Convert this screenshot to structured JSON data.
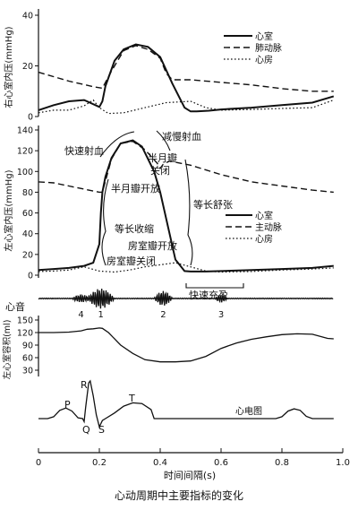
{
  "caption": "心动周期中主要指标的变化",
  "chart_data": [
    {
      "id": "right-ventricle-pressure",
      "type": "line",
      "ylabel": "右心室内压(mmHg)",
      "ylim": [
        0,
        40
      ],
      "yticks": [
        0,
        20,
        40
      ],
      "legend_placement": "top-right",
      "series": [
        {
          "name": "心室",
          "style": "solid",
          "x": [
            0,
            0.05,
            0.1,
            0.15,
            0.2,
            0.21,
            0.22,
            0.25,
            0.28,
            0.32,
            0.36,
            0.4,
            0.44,
            0.48,
            0.5,
            0.52,
            0.56,
            0.6,
            0.7,
            0.8,
            0.9,
            0.97
          ],
          "y": [
            2.5,
            4.5,
            6,
            6.5,
            3.8,
            6,
            12,
            22,
            26.5,
            28.5,
            27.5,
            23.5,
            13,
            3.5,
            2,
            2,
            2.3,
            2.8,
            3.5,
            4.5,
            5.5,
            8
          ]
        },
        {
          "name": "肺动脉",
          "style": "dashed",
          "x": [
            0,
            0.1,
            0.18,
            0.21,
            0.24,
            0.28,
            0.32,
            0.36,
            0.4,
            0.42,
            0.44,
            0.5,
            0.6,
            0.7,
            0.8,
            0.9,
            0.97
          ],
          "y": [
            17.5,
            14,
            11.8,
            11.2,
            18,
            26,
            28,
            26.5,
            23,
            17,
            14.5,
            14.5,
            13.5,
            12.5,
            11,
            10,
            10
          ]
        },
        {
          "name": "心房",
          "style": "dotted",
          "x": [
            0,
            0.05,
            0.1,
            0.15,
            0.18,
            0.2,
            0.23,
            0.28,
            0.35,
            0.42,
            0.5,
            0.55,
            0.6,
            0.7,
            0.8,
            0.9,
            0.97
          ],
          "y": [
            1.5,
            2.5,
            2.5,
            4.2,
            6.5,
            3.5,
            1.2,
            1.5,
            3.5,
            5.5,
            6,
            3.5,
            2.5,
            2.8,
            3.2,
            3.5,
            6.5
          ]
        }
      ]
    },
    {
      "id": "left-ventricle-pressure",
      "type": "line",
      "ylabel": "左心室内压(mmHg)",
      "ylim": [
        0,
        140
      ],
      "yticks": [
        0,
        20,
        40,
        60,
        80,
        100,
        120,
        140
      ],
      "legend_placement": "right",
      "series": [
        {
          "name": "心室",
          "style": "solid",
          "x": [
            0,
            0.05,
            0.1,
            0.15,
            0.18,
            0.2,
            0.205,
            0.21,
            0.22,
            0.24,
            0.27,
            0.31,
            0.34,
            0.38,
            0.4,
            0.45,
            0.48,
            0.5,
            0.55,
            0.6,
            0.7,
            0.8,
            0.9,
            0.97
          ],
          "y": [
            5,
            6,
            7,
            9,
            12,
            30,
            60,
            80,
            95,
            113,
            127,
            130,
            124,
            100,
            80,
            15,
            4,
            3.5,
            3.5,
            4,
            5,
            6,
            7,
            9
          ]
        },
        {
          "name": "主动脉",
          "style": "dashed",
          "x": [
            0,
            0.05,
            0.1,
            0.15,
            0.2,
            0.21,
            0.24,
            0.27,
            0.31,
            0.35,
            0.39,
            0.4,
            0.41,
            0.43,
            0.5,
            0.6,
            0.7,
            0.8,
            0.9,
            0.97
          ],
          "y": [
            90,
            89,
            86,
            83,
            80,
            80,
            112,
            127,
            129,
            121,
            108,
            103,
            107,
            110,
            106,
            97,
            90,
            86,
            82,
            80
          ]
        },
        {
          "name": "心房",
          "style": "dotted",
          "x": [
            0,
            0.05,
            0.1,
            0.15,
            0.2,
            0.25,
            0.3,
            0.35,
            0.4,
            0.45,
            0.5,
            0.55,
            0.6,
            0.7,
            0.8,
            0.9,
            0.97
          ],
          "y": [
            3.5,
            4,
            5,
            8,
            4,
            3,
            5,
            8,
            10,
            12,
            8,
            4,
            3,
            3.5,
            5,
            6,
            7
          ]
        }
      ],
      "annotations": [
        "快速射血",
        "减慢射血",
        "半月瓣关闭",
        "半月瓣开放",
        "等长舒张",
        "等长收缩",
        "房室瓣开放",
        "房室瓣关闭",
        "快速充盈"
      ]
    },
    {
      "id": "heart-sound",
      "type": "line",
      "label": "心音",
      "markers": [
        {
          "label": "4",
          "x": 0.14
        },
        {
          "label": "1",
          "x": 0.205
        },
        {
          "label": "2",
          "x": 0.41
        },
        {
          "label": "3",
          "x": 0.6
        }
      ]
    },
    {
      "id": "left-ventricle-volume",
      "type": "line",
      "ylabel": "左心室容积(ml)",
      "ylim": [
        30,
        150
      ],
      "yticks": [
        30,
        60,
        90,
        120,
        150
      ],
      "series": [
        {
          "x": [
            0,
            0.05,
            0.1,
            0.14,
            0.16,
            0.18,
            0.2,
            0.21,
            0.23,
            0.27,
            0.31,
            0.35,
            0.4,
            0.45,
            0.5,
            0.55,
            0.6,
            0.65,
            0.7,
            0.75,
            0.8,
            0.85,
            0.9,
            0.95,
            0.97
          ],
          "y": [
            120,
            120,
            121,
            124,
            128,
            129,
            131,
            130,
            120,
            90,
            70,
            55,
            50,
            50,
            52,
            63,
            82,
            95,
            104,
            110,
            115,
            117,
            116,
            106,
            105
          ]
        }
      ]
    },
    {
      "id": "ecg",
      "type": "line",
      "label": "心电图",
      "wave_labels": [
        "P",
        "Q",
        "R",
        "S",
        "T"
      ],
      "series": [
        {
          "x": [
            0,
            0.03,
            0.05,
            0.07,
            0.09,
            0.11,
            0.13,
            0.145,
            0.15,
            0.155,
            0.165,
            0.17,
            0.18,
            0.19,
            0.2,
            0.21,
            0.22,
            0.25,
            0.28,
            0.31,
            0.34,
            0.37,
            0.38,
            0.4,
            0.78,
            0.8,
            0.82,
            0.84,
            0.86,
            0.88,
            0.9,
            0.92,
            0.97
          ],
          "y": [
            0,
            0,
            0.05,
            0.22,
            0.28,
            0.2,
            0.02,
            0,
            -0.08,
            0.3,
            0.95,
            1,
            0.6,
            0.1,
            -0.22,
            -0.05,
            0,
            0.15,
            0.33,
            0.42,
            0.4,
            0.24,
            0,
            0,
            0,
            0.05,
            0.2,
            0.26,
            0.22,
            0.06,
            0,
            0,
            0
          ]
        }
      ]
    }
  ],
  "xaxis": {
    "label": "时间间隔(s)",
    "ticks": [
      0,
      0.2,
      0.4,
      0.6,
      0.8,
      1.0
    ],
    "tick_labels": [
      "0",
      "0.2",
      "0.4",
      "0.6",
      "0.8",
      "1.0"
    ]
  }
}
